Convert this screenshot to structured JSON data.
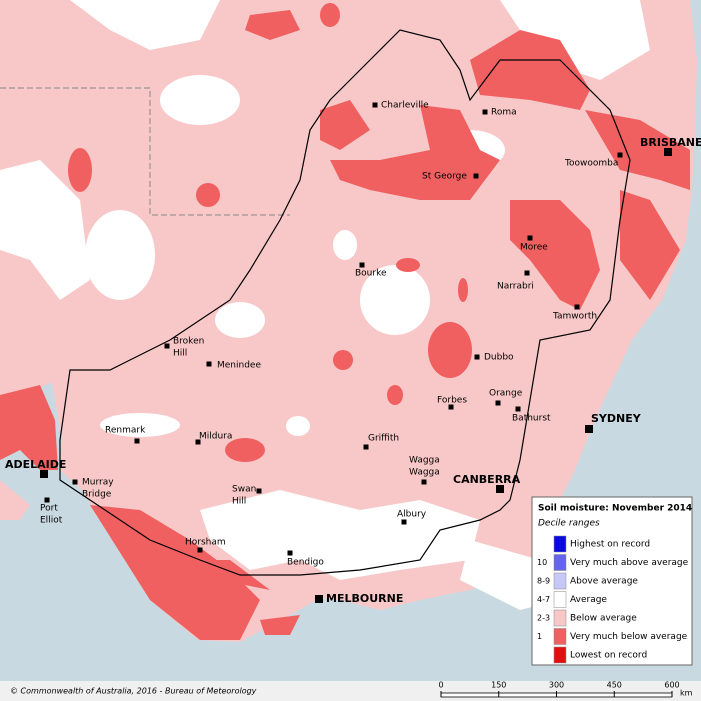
{
  "map": {
    "places": [
      {
        "lines": [
          "Charleville"
        ]
      },
      {
        "lines": [
          "Roma"
        ]
      },
      {
        "lines": [
          "BRISBANE"
        ],
        "capital": true
      },
      {
        "lines": [
          "Toowoomba"
        ]
      },
      {
        "lines": [
          "St George"
        ]
      },
      {
        "lines": [
          "Moree"
        ]
      },
      {
        "lines": [
          "Bourke"
        ]
      },
      {
        "lines": [
          "Narrabri"
        ]
      },
      {
        "lines": [
          "Tamworth"
        ]
      },
      {
        "lines": [
          "Broken",
          "Hill"
        ]
      },
      {
        "lines": [
          "Menindee"
        ]
      },
      {
        "lines": [
          "Dubbo"
        ]
      },
      {
        "lines": [
          "Orange"
        ]
      },
      {
        "lines": [
          "Bathurst"
        ]
      },
      {
        "lines": [
          "Forbes"
        ]
      },
      {
        "lines": [
          "SYDNEY"
        ],
        "capital": true
      },
      {
        "lines": [
          "Renmark"
        ]
      },
      {
        "lines": [
          "Mildura"
        ]
      },
      {
        "lines": [
          "Griffith"
        ]
      },
      {
        "lines": [
          "Wagga",
          "Wagga"
        ]
      },
      {
        "lines": [
          "CANBERRA"
        ],
        "capital": true
      },
      {
        "lines": [
          "ADELAIDE"
        ],
        "capital": true
      },
      {
        "lines": [
          "Murray",
          "Bridge"
        ]
      },
      {
        "lines": [
          "Port",
          "Elliot"
        ]
      },
      {
        "lines": [
          "Swan",
          "Hill"
        ]
      },
      {
        "lines": [
          "Albury"
        ]
      },
      {
        "lines": [
          "Horsham"
        ]
      },
      {
        "lines": [
          "Bendigo"
        ]
      },
      {
        "lines": [
          "MELBOURNE"
        ],
        "capital": true
      }
    ],
    "legend": {
      "title": "Soil moisture: November 2014",
      "subtitle": "Decile ranges",
      "items": [
        {
          "label": "Highest on record",
          "color": "#0a0ae0"
        },
        {
          "range": "10",
          "label": "Very much above average",
          "color": "#6464ee"
        },
        {
          "range": "8-9",
          "label": "Above average",
          "color": "#c8c8f8"
        },
        {
          "range": "4-7",
          "label": "Average",
          "color": "#ffffff"
        },
        {
          "range": "2-3",
          "label": "Below average",
          "color": "#f8c8c8"
        },
        {
          "range": "1",
          "label": "Very much below average",
          "color": "#f06060"
        },
        {
          "label": "Lowest on record",
          "color": "#e01010"
        }
      ]
    },
    "scale": {
      "ticks": [
        0,
        150,
        300,
        450,
        600
      ],
      "unit": "km"
    },
    "credit": "© Commonwealth of Australia, 2016 - Bureau of Meteorology"
  }
}
